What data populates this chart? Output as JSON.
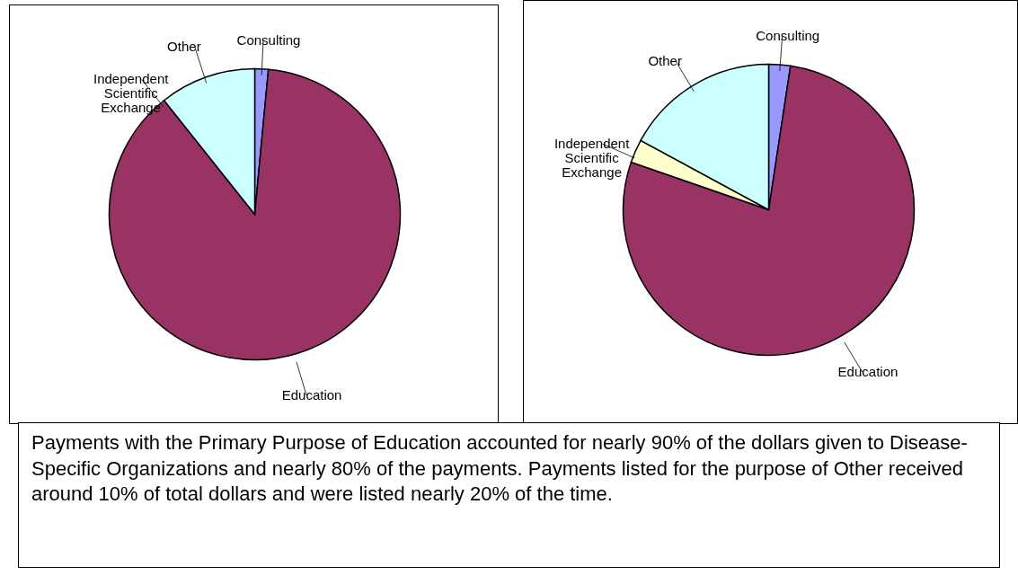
{
  "chart_data": [
    {
      "type": "pie",
      "categories": [
        "Consulting",
        "Education",
        "Independent Scientific Exchange",
        "Other"
      ],
      "values": [
        1.5,
        87.8,
        0,
        10.7
      ],
      "colors": [
        "#9999ff",
        "#993366",
        "#ffffcc",
        "#ccffff"
      ]
    },
    {
      "type": "pie",
      "categories": [
        "Consulting",
        "Education",
        "Independent Scientific Exchange",
        "Other"
      ],
      "values": [
        2.4,
        77.9,
        2.6,
        17.1
      ],
      "colors": [
        "#9999ff",
        "#993366",
        "#ffffcc",
        "#ccffff"
      ]
    },
    {
      "type": "other",
      "annotations": [
        "Payments with the Primary Purpose of Education accounted for nearly 90% of the dollars given to Disease-Specific Organizations and nearly 80% of the payments. Payments listed for the purpose of Other received around 10% of total dollars and were listed nearly 20% of the time."
      ]
    }
  ]
}
